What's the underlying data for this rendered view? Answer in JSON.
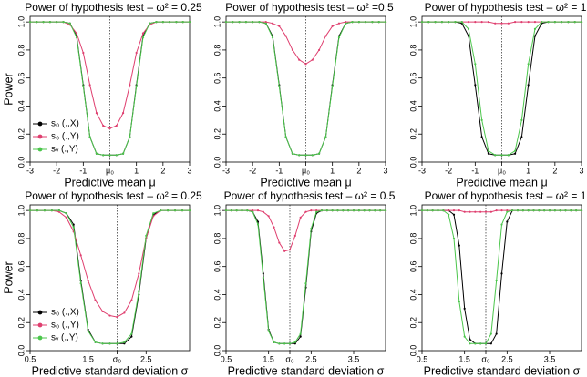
{
  "chart_data": [
    {
      "type": "line",
      "title": "Power of hypothesis test –  ω² = 0.25",
      "xlabel": "Predictive mean  μ",
      "ylabel": "Power",
      "x": [
        -3,
        -2.75,
        -2.5,
        -2.25,
        -2,
        -1.75,
        -1.5,
        -1.25,
        -1,
        -0.75,
        -0.5,
        -0.25,
        0,
        0.25,
        0.5,
        0.75,
        1,
        1.25,
        1.5,
        1.75,
        2,
        2.25,
        2.5,
        2.75,
        3
      ],
      "xlim": [
        -3,
        3
      ],
      "xticks": [
        -3,
        -2,
        -1,
        {
          "value": 0,
          "label": "μ₀"
        },
        1,
        2,
        3
      ],
      "vline": 0,
      "ylim": [
        0,
        1.04
      ],
      "yticks": [
        {
          "value": 0,
          "label": "0.0"
        },
        0.2,
        0.4,
        0.6,
        0.8,
        {
          "value": 1,
          "label": "1.0"
        }
      ],
      "legend": "lower left",
      "series": [
        {
          "name": "s₀ (.,X)",
          "color": "#000000",
          "values": [
            1,
            1,
            1,
            1,
            1,
            1,
            0.99,
            0.9,
            0.55,
            0.18,
            0.06,
            0.05,
            0.05,
            0.05,
            0.06,
            0.18,
            0.55,
            0.9,
            0.99,
            1,
            1,
            1,
            1,
            1,
            1
          ]
        },
        {
          "name": "s₀ (.,Y)",
          "color": "#df3f6f",
          "values": [
            1,
            1,
            1,
            1,
            1,
            1,
            0.98,
            0.92,
            0.78,
            0.55,
            0.35,
            0.26,
            0.24,
            0.26,
            0.35,
            0.55,
            0.78,
            0.92,
            0.98,
            1,
            1,
            1,
            1,
            1,
            1
          ]
        },
        {
          "name": "sᵥ (.,Y)",
          "color": "#4cc64c",
          "values": [
            1,
            1,
            1,
            1,
            1,
            1,
            0.99,
            0.89,
            0.54,
            0.18,
            0.06,
            0.05,
            0.05,
            0.05,
            0.06,
            0.18,
            0.54,
            0.89,
            0.99,
            1,
            1,
            1,
            1,
            1,
            1
          ]
        }
      ]
    },
    {
      "type": "line",
      "title": "Power of hypothesis test –  ω² =0.5",
      "xlabel": "Predictive mean  μ",
      "x": [
        -3,
        -2.75,
        -2.5,
        -2.25,
        -2,
        -1.75,
        -1.5,
        -1.25,
        -1,
        -0.75,
        -0.5,
        -0.25,
        0,
        0.25,
        0.5,
        0.75,
        1,
        1.25,
        1.5,
        1.75,
        2,
        2.25,
        2.5,
        2.75,
        3
      ],
      "xlim": [
        -3,
        3
      ],
      "xticks": [
        -3,
        -2,
        -1,
        {
          "value": 0,
          "label": "μ₀"
        },
        1,
        2,
        3
      ],
      "vline": 0,
      "ylim": [
        0,
        1.04
      ],
      "yticks": [
        {
          "value": 0,
          "label": "0.0"
        },
        0.2,
        0.4,
        0.6,
        0.8,
        {
          "value": 1,
          "label": "1.0"
        }
      ],
      "series": [
        {
          "color": "#000000",
          "values": [
            1,
            1,
            1,
            1,
            1,
            1,
            0.99,
            0.9,
            0.55,
            0.18,
            0.06,
            0.05,
            0.05,
            0.05,
            0.06,
            0.18,
            0.55,
            0.9,
            0.99,
            1,
            1,
            1,
            1,
            1,
            1
          ]
        },
        {
          "color": "#df3f6f",
          "values": [
            1,
            1,
            1,
            1,
            1,
            1,
            1,
            0.99,
            0.97,
            0.9,
            0.8,
            0.73,
            0.7,
            0.73,
            0.8,
            0.9,
            0.97,
            0.99,
            1,
            1,
            1,
            1,
            1,
            1,
            1
          ]
        },
        {
          "color": "#4cc64c",
          "values": [
            1,
            1,
            1,
            1,
            1,
            1,
            0.99,
            0.89,
            0.54,
            0.18,
            0.06,
            0.05,
            0.05,
            0.05,
            0.06,
            0.18,
            0.54,
            0.89,
            0.99,
            1,
            1,
            1,
            1,
            1,
            1
          ]
        }
      ]
    },
    {
      "type": "line",
      "title": "Power of hypothesis test –  ω² = 1",
      "xlabel": "Predictive mean  μ",
      "x": [
        -3,
        -2.75,
        -2.5,
        -2.25,
        -2,
        -1.75,
        -1.5,
        -1.25,
        -1,
        -0.75,
        -0.5,
        -0.25,
        0,
        0.25,
        0.5,
        0.75,
        1,
        1.25,
        1.5,
        1.75,
        2,
        2.25,
        2.5,
        2.75,
        3
      ],
      "xlim": [
        -3,
        3
      ],
      "xticks": [
        -3,
        -2,
        -1,
        {
          "value": 0,
          "label": "μ₀"
        },
        1,
        2,
        3
      ],
      "vline": 0,
      "ylim": [
        0,
        1.04
      ],
      "yticks": [
        {
          "value": 0,
          "label": "0.0"
        },
        0.2,
        0.4,
        0.6,
        0.8,
        {
          "value": 1,
          "label": "1.0"
        }
      ],
      "series": [
        {
          "color": "#000000",
          "values": [
            1,
            1,
            1,
            1,
            1,
            1,
            0.99,
            0.9,
            0.55,
            0.18,
            0.06,
            0.05,
            0.05,
            0.05,
            0.06,
            0.18,
            0.55,
            0.9,
            0.99,
            1,
            1,
            1,
            1,
            1,
            1
          ]
        },
        {
          "color": "#df3f6f",
          "values": [
            1,
            1,
            1,
            1,
            1,
            1,
            1,
            1,
            1,
            1,
            1,
            0.99,
            0.99,
            0.99,
            1,
            1,
            1,
            1,
            1,
            1,
            1,
            1,
            1,
            1,
            1
          ]
        },
        {
          "color": "#4cc64c",
          "values": [
            1,
            1,
            1,
            1,
            1,
            1,
            1,
            0.95,
            0.7,
            0.3,
            0.08,
            0.05,
            0.05,
            0.05,
            0.08,
            0.3,
            0.7,
            0.95,
            1,
            1,
            1,
            1,
            1,
            1,
            1
          ]
        }
      ]
    },
    {
      "type": "line",
      "title": "Power of hypothesis test –  ω² = 0.25",
      "xlabel": "Predictive standard deviation  σ",
      "ylabel": "Power",
      "x": [
        0.5,
        0.625,
        0.75,
        0.875,
        1,
        1.125,
        1.25,
        1.375,
        1.5,
        1.625,
        1.75,
        1.875,
        2,
        2.125,
        2.25,
        2.375,
        2.5,
        2.625,
        2.75,
        2.875,
        3,
        3.125,
        3.25
      ],
      "xlim": [
        0.5,
        3.25
      ],
      "xticks": [
        0.5,
        1.5,
        {
          "value": 2,
          "label": "σ₀"
        },
        2.5
      ],
      "vline": 2,
      "ylim": [
        0,
        1.04
      ],
      "yticks": [
        {
          "value": 0,
          "label": "0.0"
        },
        0.2,
        0.4,
        0.6,
        0.8,
        {
          "value": 1,
          "label": "1.0"
        }
      ],
      "legend": "lower left",
      "series": [
        {
          "name": "s₀ (.,X)",
          "color": "#000000",
          "values": [
            1,
            1,
            1,
            1,
            1,
            0.98,
            0.9,
            0.5,
            0.15,
            0.06,
            0.05,
            0.05,
            0.05,
            0.05,
            0.1,
            0.4,
            0.8,
            0.97,
            1,
            1,
            1,
            1,
            1
          ]
        },
        {
          "name": "s₀ (.,Y)",
          "color": "#df3f6f",
          "values": [
            1,
            1,
            1,
            1,
            0.99,
            0.95,
            0.85,
            0.68,
            0.5,
            0.36,
            0.28,
            0.25,
            0.24,
            0.27,
            0.36,
            0.55,
            0.8,
            0.96,
            1,
            1,
            1,
            1,
            1
          ]
        },
        {
          "name": "sᵥ (.,Y)",
          "color": "#4cc64c",
          "values": [
            1,
            1,
            1,
            1,
            1,
            0.98,
            0.88,
            0.48,
            0.14,
            0.06,
            0.05,
            0.05,
            0.05,
            0.06,
            0.12,
            0.42,
            0.82,
            0.98,
            1,
            1,
            1,
            1,
            1
          ]
        }
      ]
    },
    {
      "type": "line",
      "title": "Power of hypothesis test –  ω² = 0.5",
      "xlabel": "Predictive standard deviation  σ",
      "x": [
        0.5,
        0.625,
        0.75,
        0.875,
        1,
        1.125,
        1.25,
        1.375,
        1.5,
        1.625,
        1.75,
        1.875,
        2,
        2.125,
        2.25,
        2.375,
        2.5,
        2.625,
        2.75,
        2.875,
        3,
        3.125,
        3.25,
        3.375,
        3.5,
        3.625,
        3.75,
        3.875,
        4,
        4.125,
        4.25
      ],
      "xlim": [
        0.5,
        4.25
      ],
      "xticks": [
        0.5,
        1.5,
        {
          "value": 2,
          "label": "σ₀"
        },
        2.5,
        3.5
      ],
      "vline": 2,
      "ylim": [
        0,
        1.04
      ],
      "yticks": [
        {
          "value": 0,
          "label": "0.0"
        },
        0.2,
        0.4,
        0.6,
        0.8,
        {
          "value": 1,
          "label": "1.0"
        }
      ],
      "series": [
        {
          "color": "#000000",
          "values": [
            1,
            1,
            1,
            1,
            1,
            0.99,
            0.92,
            0.55,
            0.15,
            0.06,
            0.05,
            0.05,
            0.05,
            0.05,
            0.1,
            0.45,
            0.85,
            0.98,
            1,
            1,
            1,
            1,
            1,
            1,
            1,
            1,
            1,
            1,
            1,
            1,
            1
          ]
        },
        {
          "color": "#df3f6f",
          "values": [
            1,
            1,
            1,
            1,
            1,
            1,
            1,
            0.99,
            0.96,
            0.88,
            0.77,
            0.71,
            0.72,
            0.82,
            0.95,
            0.99,
            1,
            1,
            1,
            1,
            1,
            1,
            1,
            1,
            1,
            1,
            1,
            1,
            1,
            1,
            1
          ]
        },
        {
          "color": "#4cc64c",
          "values": [
            1,
            1,
            1,
            1,
            1,
            0.99,
            0.9,
            0.52,
            0.14,
            0.06,
            0.05,
            0.05,
            0.05,
            0.06,
            0.12,
            0.48,
            0.87,
            0.99,
            1,
            1,
            1,
            1,
            1,
            1,
            1,
            1,
            1,
            1,
            1,
            1,
            1
          ]
        }
      ]
    },
    {
      "type": "line",
      "title": "Power of hypothesis test –  ω² = 1",
      "xlabel": "Predictive standard deviation  σ",
      "x": [
        0.5,
        0.625,
        0.75,
        0.875,
        1,
        1.125,
        1.25,
        1.375,
        1.5,
        1.625,
        1.75,
        1.875,
        2,
        2.125,
        2.25,
        2.375,
        2.5,
        2.625,
        2.75,
        2.875,
        3,
        3.125,
        3.25,
        3.375,
        3.5,
        3.625,
        3.75,
        3.875,
        4,
        4.125,
        4.25
      ],
      "xlim": [
        0.5,
        4.25
      ],
      "xticks": [
        0.5,
        1.5,
        {
          "value": 2,
          "label": "σ₀"
        },
        2.5,
        3.5
      ],
      "vline": 2,
      "ylim": [
        0,
        1.04
      ],
      "yticks": [
        {
          "value": 0,
          "label": "0.0"
        },
        0.2,
        0.4,
        0.6,
        0.8,
        {
          "value": 1,
          "label": "1.0"
        }
      ],
      "series": [
        {
          "color": "#000000",
          "values": [
            1,
            1,
            1,
            1,
            1,
            1,
            0.97,
            0.75,
            0.3,
            0.08,
            0.05,
            0.05,
            0.05,
            0.05,
            0.12,
            0.55,
            0.92,
            1,
            1,
            1,
            1,
            1,
            1,
            1,
            1,
            1,
            1,
            1,
            1,
            1,
            1
          ]
        },
        {
          "color": "#df3f6f",
          "values": [
            1,
            1,
            1,
            1,
            1,
            1,
            1,
            1,
            0.99,
            0.99,
            0.99,
            0.99,
            0.99,
            0.99,
            1,
            1,
            1,
            1,
            1,
            1,
            1,
            1,
            1,
            1,
            1,
            1,
            1,
            1,
            1,
            1,
            1
          ]
        },
        {
          "color": "#4cc64c",
          "values": [
            1,
            1,
            1,
            1,
            1,
            0.97,
            0.8,
            0.35,
            0.1,
            0.05,
            0.05,
            0.05,
            0.05,
            0.12,
            0.5,
            0.9,
            0.99,
            1,
            1,
            1,
            1,
            1,
            1,
            1,
            1,
            1,
            1,
            1,
            1,
            1,
            1
          ]
        }
      ]
    }
  ]
}
